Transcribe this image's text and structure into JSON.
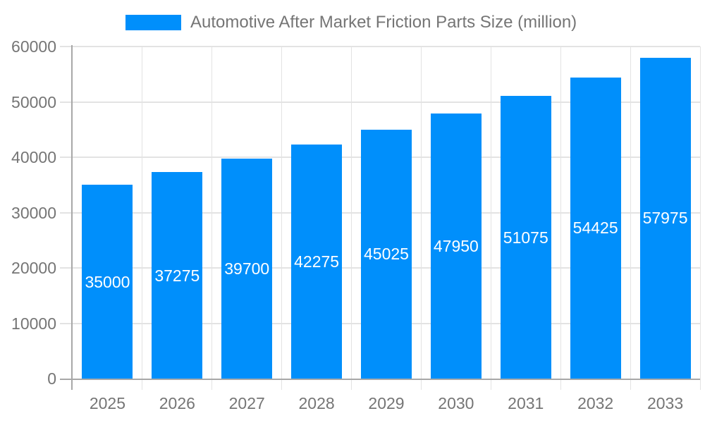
{
  "chart_data": {
    "type": "bar",
    "title": "Automotive After Market Friction Parts Size (million)",
    "categories": [
      "2025",
      "2026",
      "2027",
      "2028",
      "2029",
      "2030",
      "2031",
      "2032",
      "2033"
    ],
    "values": [
      35000,
      37275,
      39700,
      42275,
      45025,
      47950,
      51075,
      54425,
      57975
    ],
    "xlabel": "",
    "ylabel": "",
    "ylim": [
      0,
      60000
    ],
    "ytick_labels": [
      "0",
      "10000",
      "20000",
      "30000",
      "40000",
      "50000",
      "60000"
    ],
    "grid": true,
    "legend_position": "top",
    "value_labels": "inside-center",
    "colors": {
      "bar": "#008FFB",
      "value_label": "#FFFFFF",
      "axis_text": "#757575",
      "gridline": "#E3E3E3",
      "axis_line": "#A8A8A8"
    }
  }
}
